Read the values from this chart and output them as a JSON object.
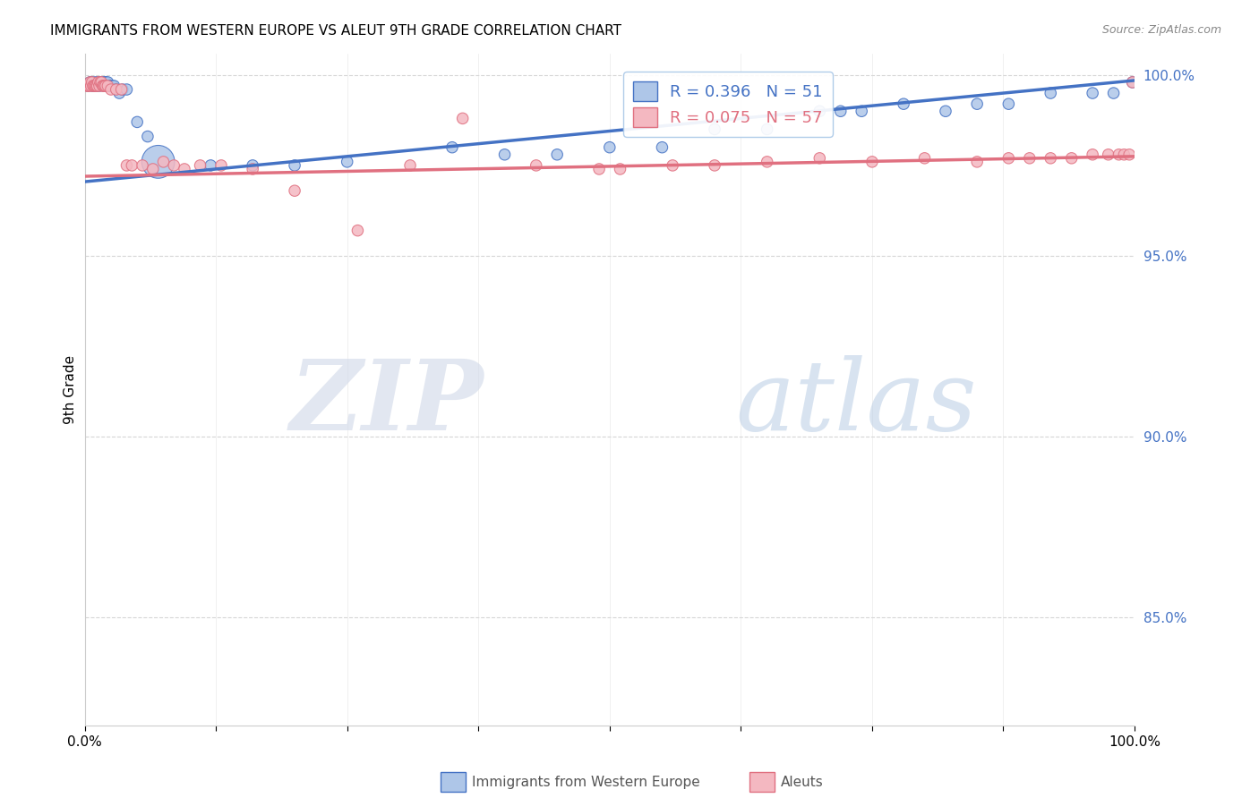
{
  "title": "IMMIGRANTS FROM WESTERN EUROPE VS ALEUT 9TH GRADE CORRELATION CHART",
  "source": "Source: ZipAtlas.com",
  "ylabel": "9th Grade",
  "right_yticks": [
    0.85,
    0.9,
    0.95,
    1.0
  ],
  "right_ytick_labels": [
    "85.0%",
    "90.0%",
    "95.0%",
    "100.0%"
  ],
  "legend_label1": "R = 0.396   N = 51",
  "legend_label2": "R = 0.075   N = 57",
  "legend_color1": "#aec6e8",
  "legend_color2": "#f4b8c1",
  "line_color1": "#4472c4",
  "line_color2": "#e07080",
  "blue_scatter_x": [
    0.003,
    0.005,
    0.006,
    0.007,
    0.008,
    0.009,
    0.01,
    0.011,
    0.012,
    0.013,
    0.014,
    0.015,
    0.016,
    0.017,
    0.018,
    0.019,
    0.02,
    0.021,
    0.022,
    0.024,
    0.026,
    0.028,
    0.03,
    0.033,
    0.036,
    0.04,
    0.05,
    0.06,
    0.07,
    0.12,
    0.16,
    0.2,
    0.25,
    0.35,
    0.4,
    0.45,
    0.5,
    0.55,
    0.6,
    0.65,
    0.7,
    0.72,
    0.74,
    0.78,
    0.82,
    0.85,
    0.88,
    0.92,
    0.96,
    0.98,
    0.998
  ],
  "blue_scatter_y": [
    0.997,
    0.998,
    0.998,
    0.997,
    0.998,
    0.997,
    0.997,
    0.998,
    0.997,
    0.998,
    0.997,
    0.998,
    0.998,
    0.998,
    0.997,
    0.998,
    0.998,
    0.997,
    0.998,
    0.997,
    0.997,
    0.997,
    0.996,
    0.995,
    0.996,
    0.996,
    0.987,
    0.983,
    0.976,
    0.975,
    0.975,
    0.975,
    0.976,
    0.98,
    0.978,
    0.978,
    0.98,
    0.98,
    0.985,
    0.985,
    0.99,
    0.99,
    0.99,
    0.992,
    0.99,
    0.992,
    0.992,
    0.995,
    0.995,
    0.995,
    0.998
  ],
  "blue_scatter_s": [
    80,
    80,
    80,
    80,
    80,
    80,
    80,
    80,
    80,
    80,
    80,
    80,
    80,
    80,
    80,
    80,
    80,
    80,
    80,
    80,
    80,
    80,
    80,
    80,
    80,
    80,
    80,
    80,
    700,
    80,
    80,
    80,
    80,
    80,
    80,
    80,
    80,
    80,
    80,
    80,
    80,
    80,
    80,
    80,
    80,
    80,
    80,
    80,
    80,
    80,
    80
  ],
  "pink_scatter_x": [
    0.002,
    0.003,
    0.004,
    0.005,
    0.006,
    0.007,
    0.008,
    0.009,
    0.01,
    0.011,
    0.012,
    0.013,
    0.014,
    0.015,
    0.016,
    0.017,
    0.018,
    0.019,
    0.02,
    0.022,
    0.025,
    0.03,
    0.035,
    0.04,
    0.045,
    0.055,
    0.065,
    0.075,
    0.085,
    0.095,
    0.11,
    0.13,
    0.16,
    0.2,
    0.26,
    0.31,
    0.36,
    0.43,
    0.49,
    0.51,
    0.56,
    0.6,
    0.65,
    0.7,
    0.75,
    0.8,
    0.85,
    0.88,
    0.9,
    0.92,
    0.94,
    0.96,
    0.975,
    0.985,
    0.99,
    0.995,
    0.998
  ],
  "pink_scatter_y": [
    0.997,
    0.997,
    0.997,
    0.998,
    0.997,
    0.998,
    0.997,
    0.997,
    0.997,
    0.997,
    0.997,
    0.998,
    0.997,
    0.998,
    0.998,
    0.997,
    0.997,
    0.997,
    0.997,
    0.997,
    0.996,
    0.996,
    0.996,
    0.975,
    0.975,
    0.975,
    0.974,
    0.976,
    0.975,
    0.974,
    0.975,
    0.975,
    0.974,
    0.968,
    0.957,
    0.975,
    0.988,
    0.975,
    0.974,
    0.974,
    0.975,
    0.975,
    0.976,
    0.977,
    0.976,
    0.977,
    0.976,
    0.977,
    0.977,
    0.977,
    0.977,
    0.978,
    0.978,
    0.978,
    0.978,
    0.978,
    0.998
  ],
  "pink_scatter_s": [
    80,
    80,
    80,
    80,
    80,
    80,
    80,
    80,
    80,
    80,
    80,
    80,
    80,
    80,
    80,
    80,
    80,
    80,
    80,
    80,
    80,
    80,
    80,
    80,
    80,
    80,
    80,
    80,
    80,
    80,
    80,
    80,
    80,
    80,
    80,
    80,
    80,
    80,
    80,
    80,
    80,
    80,
    80,
    80,
    80,
    80,
    80,
    80,
    80,
    80,
    80,
    80,
    80,
    80,
    80,
    80,
    80
  ],
  "blue_line_x": [
    0.0,
    1.0
  ],
  "blue_line_y": [
    0.9705,
    0.9985
  ],
  "pink_line_x": [
    0.0,
    1.0
  ],
  "pink_line_y": [
    0.972,
    0.9775
  ],
  "ylim": [
    0.82,
    1.006
  ],
  "xlim": [
    0.0,
    1.0
  ],
  "watermark_zip": "ZIP",
  "watermark_atlas": "atlas",
  "background_color": "#ffffff"
}
